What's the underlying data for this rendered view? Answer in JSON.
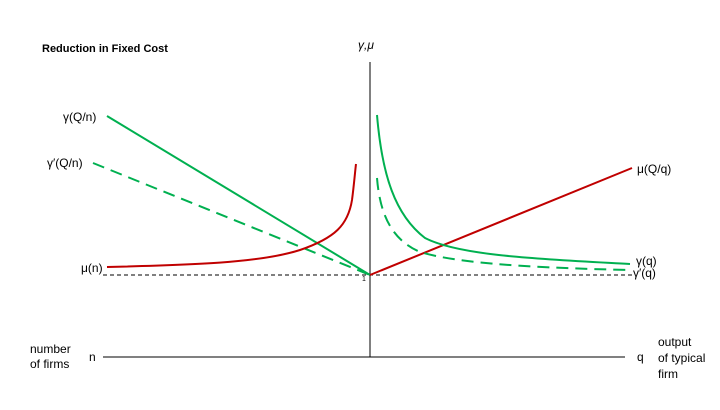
{
  "title": "Reduction in Fixed Cost",
  "axis_label_top": "γ,μ",
  "left_axis": {
    "label_line1": "number",
    "label_line2": "of firms",
    "end_label": "n"
  },
  "right_axis": {
    "label_line1": "output",
    "label_line2": "of typical",
    "label_line3": "firm",
    "end_label": "q"
  },
  "origin_label": "1",
  "curve_labels": {
    "gamma_Qn": "γ(Q/n)",
    "gamma_prime_Qn": "γ′(Q/n)",
    "mu_n": "μ(n)",
    "mu_Qq": "μ(Q/q)",
    "gamma_q": "γ(q)",
    "gamma_prime_q": "γ′(q)"
  },
  "colors": {
    "green": "#00b050",
    "red": "#c00000",
    "axis": "#000000"
  }
}
